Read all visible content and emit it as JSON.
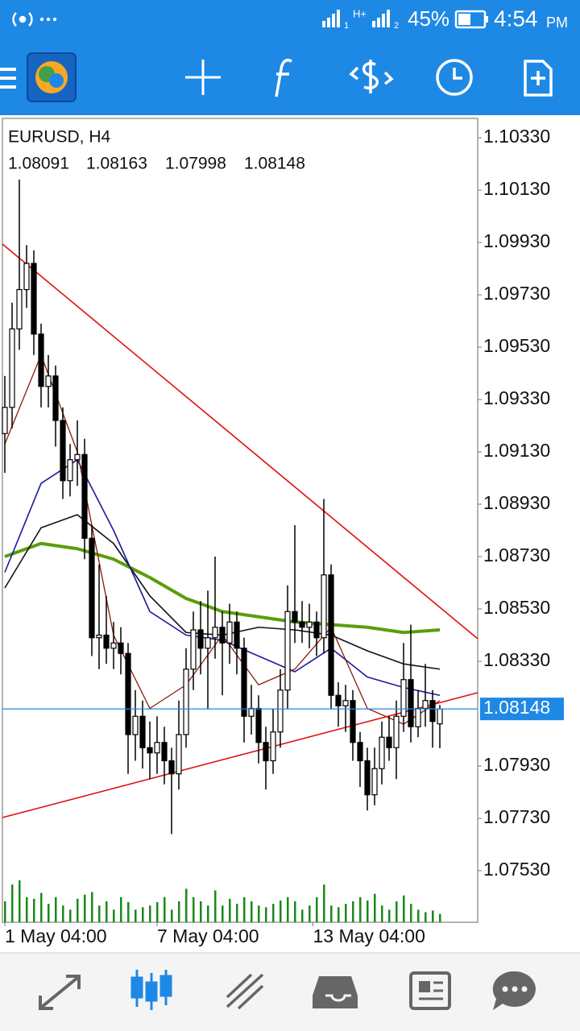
{
  "status_bar": {
    "network": "H+",
    "sim1": "1",
    "sim2": "2",
    "battery": "45%",
    "time": "4:54",
    "ampm": "PM"
  },
  "chart_data": {
    "type": "candlestick",
    "title": "EURUSD, H4",
    "open": [
      1.092,
      1.093,
      1.096,
      1.0975,
      1.0985,
      1.0958,
      1.0938,
      1.0942,
      1.0925,
      1.0902,
      1.091,
      1.0912,
      1.088,
      1.0842,
      1.0843,
      1.0838,
      1.084,
      1.0836,
      1.0805,
      1.0812,
      1.08,
      1.0798,
      1.0802,
      1.0795,
      1.079,
      1.0805,
      1.083,
      1.0845,
      1.0838,
      1.0842,
      1.0846,
      1.084,
      1.0848,
      1.0838,
      1.0812,
      1.0815,
      1.0802,
      1.0795,
      1.0806,
      1.0822,
      1.0852,
      1.0848,
      1.0846,
      1.0848,
      1.0842,
      1.0866,
      1.082,
      1.0816,
      1.0818,
      1.0802,
      1.0795,
      1.0782,
      1.0792,
      1.0804,
      1.08,
      1.0812,
      1.0826,
      1.0808,
      1.0815,
      1.0818,
      1.08091
    ],
    "high": [
      1.0942,
      1.097,
      1.1017,
      1.0992,
      1.099,
      1.0962,
      1.095,
      1.0946,
      1.093,
      1.0916,
      1.0925,
      1.0918,
      1.0885,
      1.087,
      1.0858,
      1.0848,
      1.0846,
      1.084,
      1.0822,
      1.0818,
      1.081,
      1.0812,
      1.0808,
      1.08,
      1.0818,
      1.0838,
      1.0852,
      1.0856,
      1.086,
      1.0873,
      1.0852,
      1.0855,
      1.0852,
      1.0842,
      1.0824,
      1.082,
      1.0808,
      1.0815,
      1.083,
      1.0862,
      1.0885,
      1.0856,
      1.0855,
      1.0852,
      1.0895,
      1.087,
      1.0825,
      1.0824,
      1.0822,
      1.0806,
      1.08,
      1.08,
      1.081,
      1.0812,
      1.0818,
      1.084,
      1.0847,
      1.0822,
      1.0832,
      1.0822,
      1.08163
    ],
    "low": [
      1.0905,
      1.0922,
      1.0952,
      1.0968,
      1.095,
      1.093,
      1.093,
      1.0915,
      1.0895,
      1.0896,
      1.09,
      1.0872,
      1.0835,
      1.083,
      1.0832,
      1.083,
      1.0828,
      1.079,
      1.0795,
      1.0792,
      1.0788,
      1.079,
      1.0786,
      1.0767,
      1.0784,
      1.08,
      1.0822,
      1.0828,
      1.0815,
      1.0834,
      1.082,
      1.0832,
      1.0828,
      1.0802,
      1.0805,
      1.0794,
      1.0784,
      1.079,
      1.08,
      1.0815,
      1.084,
      1.084,
      1.0838,
      1.0835,
      1.0836,
      1.0815,
      1.0808,
      1.0806,
      1.0795,
      1.0785,
      1.0776,
      1.0778,
      1.0786,
      1.0795,
      1.0788,
      1.0806,
      1.0802,
      1.0804,
      1.0808,
      1.08,
      1.07998
    ],
    "close": [
      1.093,
      1.096,
      1.0975,
      1.0985,
      1.0958,
      1.0938,
      1.0942,
      1.0925,
      1.0902,
      1.091,
      1.0912,
      1.088,
      1.0842,
      1.0843,
      1.0838,
      1.084,
      1.0836,
      1.0805,
      1.0812,
      1.08,
      1.0798,
      1.0802,
      1.0795,
      1.079,
      1.0805,
      1.083,
      1.0845,
      1.0838,
      1.0842,
      1.0846,
      1.084,
      1.0848,
      1.0838,
      1.0812,
      1.0815,
      1.0802,
      1.0795,
      1.0806,
      1.0822,
      1.0852,
      1.0848,
      1.0846,
      1.0848,
      1.0842,
      1.0866,
      1.082,
      1.0816,
      1.0818,
      1.0802,
      1.0795,
      1.0782,
      1.0792,
      1.0804,
      1.08,
      1.0812,
      1.0826,
      1.0808,
      1.0815,
      1.0818,
      1.081,
      1.08148
    ],
    "volumes": [
      25,
      45,
      50,
      30,
      28,
      35,
      22,
      30,
      20,
      15,
      28,
      33,
      36,
      20,
      25,
      15,
      30,
      24,
      15,
      18,
      20,
      24,
      30,
      15,
      25,
      40,
      30,
      25,
      20,
      38,
      20,
      28,
      22,
      30,
      25,
      20,
      18,
      22,
      26,
      30,
      25,
      15,
      20,
      30,
      45,
      20,
      18,
      22,
      25,
      30,
      26,
      34,
      20,
      15,
      25,
      32,
      22,
      15,
      12,
      14,
      10
    ],
    "volume_color": "#1a8a1a",
    "bull_color": "#ffffff",
    "bear_color": "#000000",
    "series": [
      {
        "color": "#5a9e0a",
        "x": [
          0,
          5,
          10,
          15,
          20,
          25,
          30,
          35,
          40,
          45,
          50,
          55,
          60
        ],
        "values": [
          1.0873,
          1.0878,
          1.0876,
          1.0872,
          1.0865,
          1.0857,
          1.0852,
          1.085,
          1.0848,
          1.0847,
          1.0846,
          1.0844,
          1.0845
        ]
      },
      {
        "color": "#111111",
        "x": [
          0,
          5,
          10,
          15,
          20,
          25,
          30,
          35,
          40,
          45,
          50,
          55,
          60
        ],
        "values": [
          1.0861,
          1.0884,
          1.0889,
          1.0878,
          1.0858,
          1.0844,
          1.0843,
          1.0846,
          1.0845,
          1.0843,
          1.0837,
          1.0832,
          1.083
        ]
      },
      {
        "color": "#1a1a9a",
        "x": [
          0,
          5,
          10,
          15,
          20,
          25,
          30,
          35,
          40,
          45,
          50,
          55,
          60
        ],
        "values": [
          1.0867,
          1.0901,
          1.091,
          1.0883,
          1.0852,
          1.0843,
          1.0841,
          1.0835,
          1.0829,
          1.0838,
          1.0827,
          1.0823,
          1.082
        ]
      },
      {
        "color": "#8b1a0a",
        "x": [
          0,
          5,
          10,
          15,
          20,
          25,
          30,
          35,
          40,
          45,
          50,
          55,
          60
        ],
        "values": [
          1.0916,
          1.095,
          1.0913,
          1.0843,
          1.0815,
          1.0824,
          1.0843,
          1.0824,
          1.083,
          1.0846,
          1.0815,
          1.0809,
          1.0818
        ]
      }
    ],
    "trendlines": [
      {
        "color": "#dd1111",
        "x": [
          -0.3333,
          65.2222
        ],
        "values": [
          1.09924,
          1.08416
        ]
      },
      {
        "color": "#dd1111",
        "x": [
          -0.3333,
          65.2222
        ],
        "values": [
          1.07733,
          1.0821
        ]
      }
    ],
    "price_line_color": "#1e88e5",
    "xlim": [
      -0.3333,
      65.2222
    ],
    "xticks": [
      {
        "value": 0,
        "label": "1 May 04:00"
      },
      {
        "value": 21,
        "label": "7 May 04:00"
      },
      {
        "value": 42.5,
        "label": "13 May 04:00"
      }
    ],
    "ylim": [
      1.07333,
      1.10404
    ],
    "yticks": [
      {
        "value": 1.1033,
        "label": "1.10330"
      },
      {
        "value": 1.1013,
        "label": "1.10130"
      },
      {
        "value": 1.0993,
        "label": "1.09930"
      },
      {
        "value": 1.0973,
        "label": "1.09730"
      },
      {
        "value": 1.0953,
        "label": "1.09530"
      },
      {
        "value": 1.0933,
        "label": "1.09330"
      },
      {
        "value": 1.0913,
        "label": "1.09130"
      },
      {
        "value": 1.0893,
        "label": "1.08930"
      },
      {
        "value": 1.0873,
        "label": "1.08730"
      },
      {
        "value": 1.0853,
        "label": "1.08530"
      },
      {
        "value": 1.0833,
        "label": "1.08330"
      },
      {
        "value": 1.0793,
        "label": "1.07930"
      },
      {
        "value": 1.0773,
        "label": "1.07730"
      },
      {
        "value": 1.0753,
        "label": "1.07530"
      }
    ],
    "grid": false
  }
}
